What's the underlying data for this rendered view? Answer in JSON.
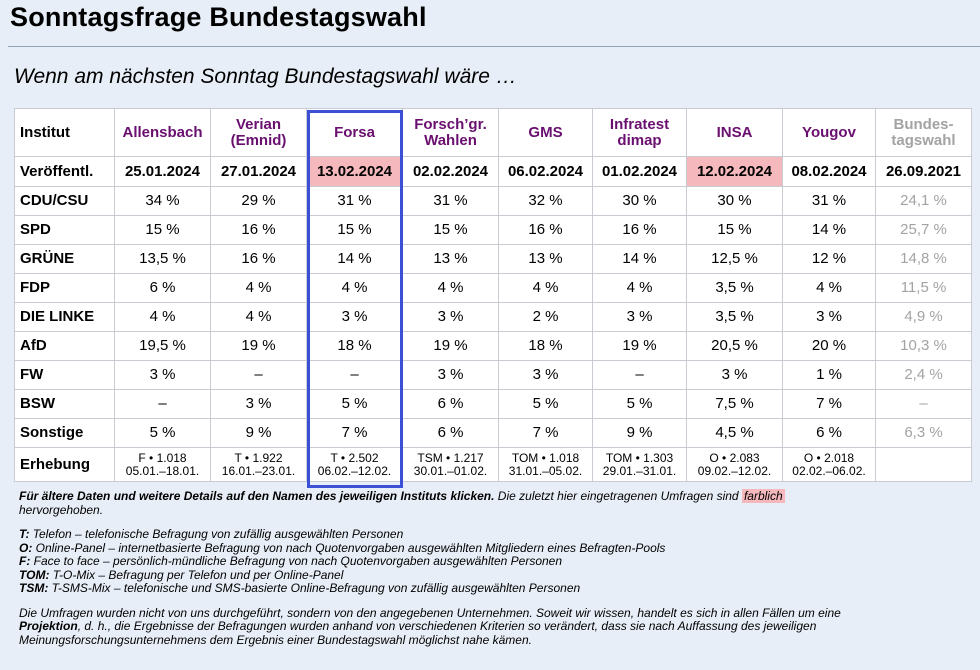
{
  "page": {
    "title": "Sonntagsfrage Bundestagswahl",
    "subtitle": "Wenn am nächsten Sonntag Bundestagswahl wäre …"
  },
  "table": {
    "corner_label": "Institut",
    "pub_label": "Veröffentl.",
    "erhebung_label": "Erhebung",
    "columns": [
      {
        "name_lines": [
          "Allensbach"
        ],
        "date": "25.01.2024",
        "highlight": false,
        "erh1": "F • 1.018",
        "erh2": "05.01.–18.01."
      },
      {
        "name_lines": [
          "Verian",
          "(Emnid)"
        ],
        "date": "27.01.2024",
        "highlight": false,
        "erh1": "T • 1.922",
        "erh2": "16.01.–23.01."
      },
      {
        "name_lines": [
          "Forsa"
        ],
        "date": "13.02.2024",
        "highlight": true,
        "erh1": "T • 2.502",
        "erh2": "06.02.–12.02."
      },
      {
        "name_lines": [
          "Forsch’gr.",
          "Wahlen"
        ],
        "date": "02.02.2024",
        "highlight": false,
        "erh1": "TSM • 1.217",
        "erh2": "30.01.–01.02."
      },
      {
        "name_lines": [
          "GMS"
        ],
        "date": "06.02.2024",
        "highlight": false,
        "erh1": "TOM • 1.018",
        "erh2": "31.01.–05.02."
      },
      {
        "name_lines": [
          "Infratest",
          "dimap"
        ],
        "date": "01.02.2024",
        "highlight": false,
        "erh1": "TOM • 1.303",
        "erh2": "29.01.–31.01."
      },
      {
        "name_lines": [
          "INSA"
        ],
        "date": "12.02.2024",
        "highlight": true,
        "erh1": "O • 2.083",
        "erh2": "09.02.–12.02."
      },
      {
        "name_lines": [
          "Yougov"
        ],
        "date": "08.02.2024",
        "highlight": false,
        "erh1": "O • 2.018",
        "erh2": "02.02.–06.02."
      }
    ],
    "bt_column": {
      "name_lines": [
        "Bundes-",
        "tagswahl"
      ],
      "date": "26.09.2021"
    },
    "parties": [
      {
        "name": "CDU/CSU",
        "values": [
          "34 %",
          "29 %",
          "31 %",
          "31 %",
          "32 %",
          "30 %",
          "30 %",
          "31 %"
        ],
        "bt": "24,1 %"
      },
      {
        "name": "SPD",
        "values": [
          "15 %",
          "16 %",
          "15 %",
          "15 %",
          "16 %",
          "16 %",
          "15 %",
          "14 %"
        ],
        "bt": "25,7 %"
      },
      {
        "name": "GRÜNE",
        "values": [
          "13,5 %",
          "16 %",
          "14 %",
          "13 %",
          "13 %",
          "14 %",
          "12,5 %",
          "12 %"
        ],
        "bt": "14,8 %"
      },
      {
        "name": "FDP",
        "values": [
          "6 %",
          "4 %",
          "4 %",
          "4 %",
          "4 %",
          "4 %",
          "3,5 %",
          "4 %"
        ],
        "bt": "11,5 %"
      },
      {
        "name": "DIE LINKE",
        "values": [
          "4 %",
          "4 %",
          "3 %",
          "3 %",
          "2 %",
          "3 %",
          "3,5 %",
          "3 %"
        ],
        "bt": "4,9 %"
      },
      {
        "name": "AfD",
        "values": [
          "19,5 %",
          "19 %",
          "18 %",
          "19 %",
          "18 %",
          "19 %",
          "20,5 %",
          "20 %"
        ],
        "bt": "10,3 %"
      },
      {
        "name": "FW",
        "values": [
          "3 %",
          "–",
          "–",
          "3 %",
          "3 %",
          "–",
          "3 %",
          "1 %"
        ],
        "bt": "2,4 %"
      },
      {
        "name": "BSW",
        "values": [
          "–",
          "3 %",
          "5 %",
          "6 %",
          "5 %",
          "5 %",
          "7,5 %",
          "7 %"
        ],
        "bt": "–"
      },
      {
        "name": "Sonstige",
        "values": [
          "5 %",
          "9 %",
          "7 %",
          "6 %",
          "7 %",
          "9 %",
          "4,5 %",
          "6 %"
        ],
        "bt": "6,3 %"
      }
    ]
  },
  "notes": {
    "details_bold": "Für ältere Daten und weitere Details auf den Namen des jeweiligen Instituts klicken.",
    "details_rest": " Die zuletzt hier eingetragenen Umfragen sind ",
    "farblich": "farblich",
    "details_end": "hervorgehoben.",
    "legend": [
      {
        "key": "T:",
        "text": " Telefon – telefonische Befragung von zufällig ausgewählten Personen"
      },
      {
        "key": "O:",
        "text": " Online-Panel – internetbasierte Befragung von nach Quotenvorgaben ausgewählten Mitgliedern eines Befragten-Pools"
      },
      {
        "key": "F:",
        "text": " Face to face – persönlich-mündliche Befragung von nach Quotenvorgaben ausgewählten Personen"
      },
      {
        "key": "TOM:",
        "text": " T-O-Mix – Befragung per Telefon und per Online-Panel"
      },
      {
        "key": "TSM:",
        "text": " T-SMS-Mix – telefonische und SMS-basierte Online-Befragung von zufällig ausgewählten Personen"
      }
    ],
    "final_a": "Die Umfragen wurden nicht von uns durchgeführt, sondern von den angegebenen Unternehmen. Soweit wir wissen, handelt es sich in allen Fällen um eine",
    "final_b_bold": "Projektion",
    "final_b": ", d. h., die Ergebnisse der Befragungen wurden anhand von verschiedenen Kriterien so verändert, dass sie nach Auffassung des jeweiligen",
    "final_c": "Meinungsforschungsunternehmens dem Ergebnis einer Bundestagswahl möglichst nahe kämen."
  }
}
